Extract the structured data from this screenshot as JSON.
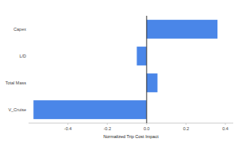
{
  "chart_data": {
    "type": "bar",
    "orientation": "horizontal",
    "x_label": "Normalized Trip Cost Impact",
    "categories": [
      "Capex",
      "L/D",
      "Total Mass",
      "V_Cruise"
    ],
    "values": [
      0.36,
      -0.05,
      0.055,
      -0.575
    ],
    "color": "#4a86e8",
    "xlim": [
      -0.6,
      0.44
    ],
    "xticks": [
      -0.4,
      -0.2,
      {
        "value": 0,
        "label": "0.0"
      },
      0.2,
      0.4
    ],
    "grid": false
  }
}
